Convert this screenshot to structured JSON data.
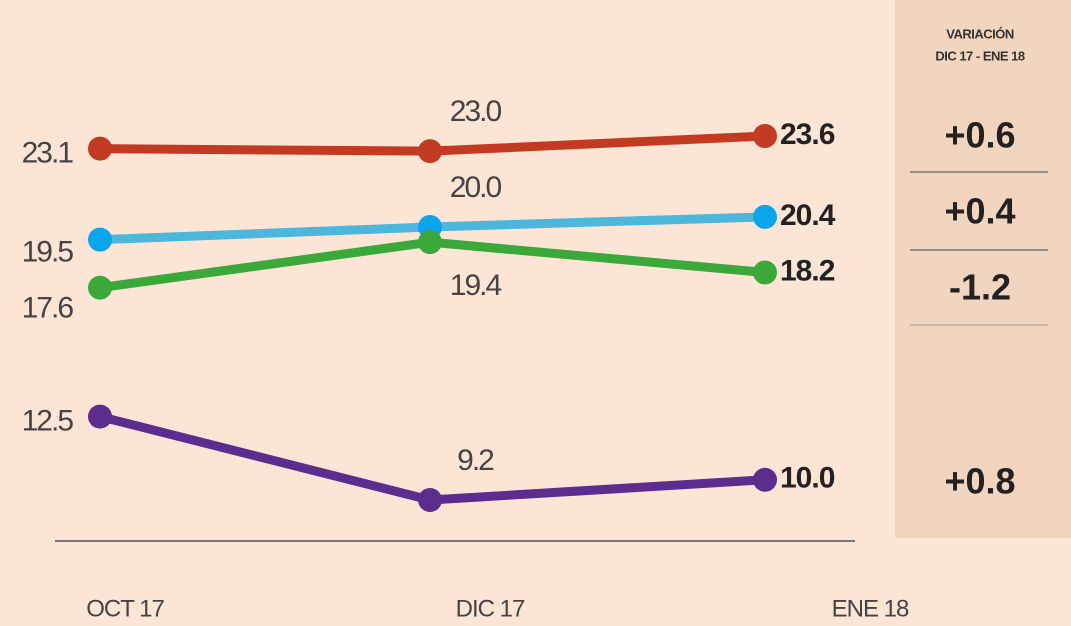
{
  "chart_data": {
    "type": "line",
    "categories": [
      "OCT 17",
      "DIC 17",
      "ENE 18"
    ],
    "series": [
      {
        "color": "#c23a22",
        "values": [
          23.1,
          23.0,
          23.6
        ],
        "value_labels": [
          "23.1",
          "23.0",
          "23.6"
        ]
      },
      {
        "color": "#4db6dd",
        "values": [
          19.5,
          20.0,
          20.4
        ],
        "value_labels": [
          "19.5",
          "20.0",
          "20.4"
        ]
      },
      {
        "color": "#3aa93a",
        "values": [
          17.6,
          19.4,
          18.2
        ],
        "value_labels": [
          "17.6",
          "19.4",
          "18.2"
        ]
      },
      {
        "color": "#5c2d8f",
        "values": [
          12.5,
          9.2,
          10.0
        ],
        "value_labels": [
          "12.5",
          "9.2",
          "10.0"
        ]
      }
    ],
    "variation": {
      "title": [
        "VARIACIÓN",
        "DIC 17 - ENE 18"
      ],
      "values": [
        0.6,
        0.4,
        -1.2,
        0.8
      ],
      "value_labels": [
        "+0.6",
        "+0.4",
        "-1.2",
        "+0.8"
      ]
    }
  }
}
